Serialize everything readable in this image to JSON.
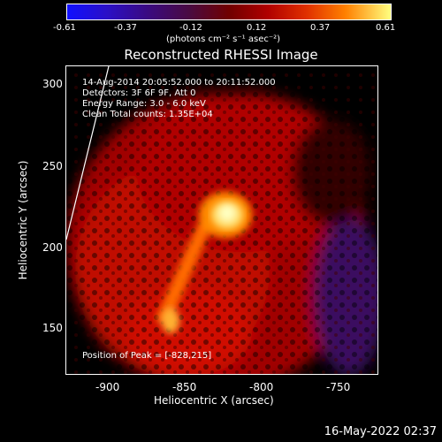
{
  "colorbar": {
    "ticks": [
      "-0.61",
      "-0.37",
      "-0.12",
      "0.12",
      "0.37",
      "0.61"
    ],
    "units": "(photons cm⁻² s⁻¹ asec⁻²)"
  },
  "title": "Reconstructed RHESSI Image",
  "annotations": {
    "time": "14-Aug-2014 20:05:52.000 to 20:11:52.000",
    "detectors": "Detectors: 3F 6F 9F, Att 0",
    "energy": "Energy Range: 3.0 - 6.0 keV",
    "clean": "Clean    Total counts: 1.35E+04",
    "peak": "Position of Peak = [-828,215]"
  },
  "axes": {
    "xlabel": "Heliocentric X (arcsec)",
    "ylabel": "Heliocentric Y (arcsec)",
    "xticks": [
      "-900",
      "-850",
      "-800",
      "-750"
    ],
    "yticks": [
      "300",
      "250",
      "200",
      "150"
    ]
  },
  "footer": {
    "date": "16-May-2022 02:37"
  },
  "colors": {
    "background": "#000000",
    "peak": "#ffffc0",
    "emission": "#e02000",
    "negative": "#3a1060"
  }
}
